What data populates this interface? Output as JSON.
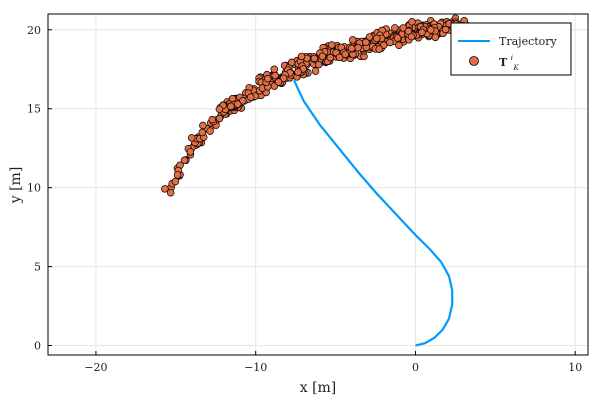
{
  "chart_data": {
    "type": "scatter",
    "title": "",
    "xlabel": "x [m]",
    "ylabel": "y [m]",
    "xlim": [
      -23,
      10.8
    ],
    "ylim": [
      -0.6,
      21
    ],
    "xticks": [
      -20,
      -10,
      0,
      10
    ],
    "yticks": [
      0,
      5,
      10,
      15,
      20
    ],
    "xtick_labels": [
      "−20",
      "−10",
      "0",
      "10"
    ],
    "ytick_labels": [
      "0",
      "5",
      "10",
      "15",
      "20"
    ],
    "grid": true,
    "legend_position": "top-right",
    "trajectory": {
      "name": "Trajectory",
      "color": "#009AFA",
      "x": [
        0.0,
        0.6,
        1.2,
        1.7,
        2.1,
        2.3,
        2.3,
        2.1,
        1.6,
        0.9,
        0.0,
        -1.2,
        -2.4,
        -3.6,
        -4.8,
        -6.0,
        -7.0,
        -7.6
      ],
      "y": [
        0.0,
        0.15,
        0.5,
        1.0,
        1.7,
        2.6,
        3.5,
        4.4,
        5.3,
        6.1,
        7.0,
        8.3,
        9.6,
        11.0,
        12.5,
        14.0,
        15.5,
        16.8
      ]
    },
    "particles": {
      "name_main": "T",
      "name_sup": "i",
      "name_sub": "K",
      "color": "#E26F46",
      "edge_color": "#000000",
      "count": 500,
      "t_min": 0.0,
      "t_max": 1.0,
      "x_start": -15.3,
      "x_end": 3.0,
      "curve": [
        [
          -15.3,
          9.7
        ],
        [
          -14.2,
          12.3
        ],
        [
          -12.0,
          14.9
        ],
        [
          -9.0,
          16.8
        ],
        [
          -5.0,
          18.6
        ],
        [
          0.0,
          19.9
        ],
        [
          3.0,
          20.2
        ]
      ],
      "spread_y": 0.9
    }
  }
}
